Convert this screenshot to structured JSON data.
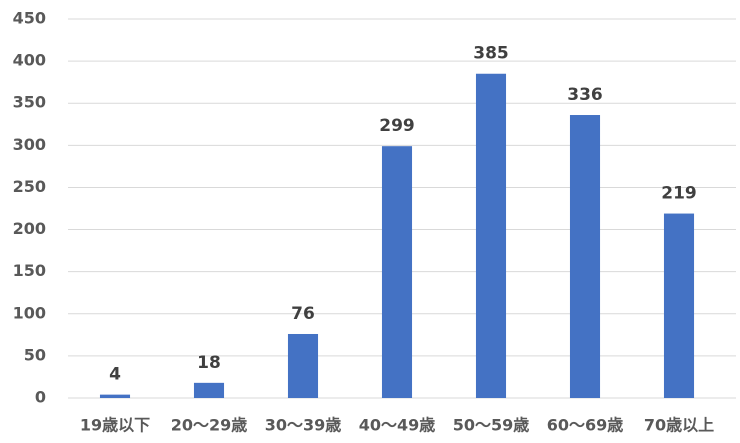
{
  "chart_data": {
    "type": "bar",
    "categories": [
      "19歳以下",
      "20〜29歳",
      "30〜39歳",
      "40〜49歳",
      "50〜59歳",
      "60〜69歳",
      "70歳以上"
    ],
    "values": [
      4,
      18,
      76,
      299,
      385,
      336,
      219
    ],
    "color": "#4472c4",
    "ylim": [
      0,
      450
    ],
    "yticks": [
      0,
      50,
      100,
      150,
      200,
      250,
      300,
      350,
      400,
      450
    ],
    "grid": true,
    "data_labels": true
  }
}
